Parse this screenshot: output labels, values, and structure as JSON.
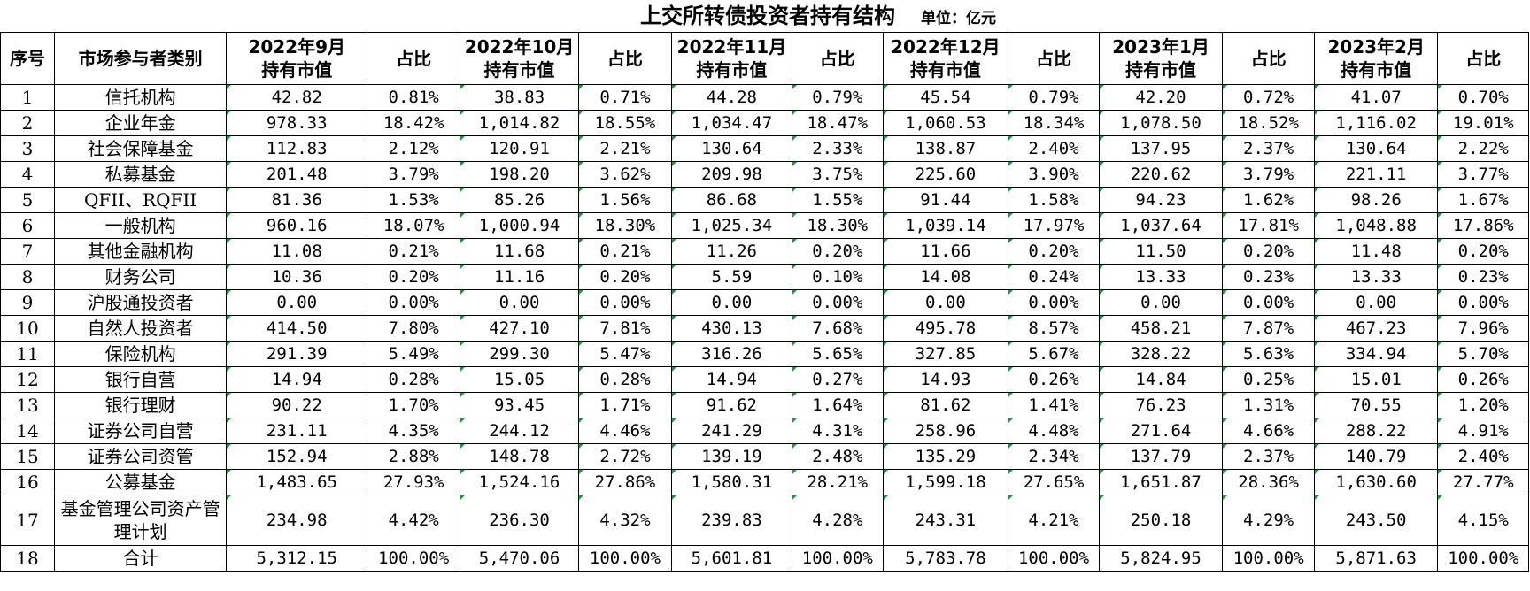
{
  "title": "上交所转债投资者持有结构",
  "unit": "单位：亿元",
  "headers": [
    "序号",
    "市场参与者类别",
    "2022年9月持有市值",
    "占比",
    "2022年10月持有市值",
    "占比",
    "2022年11月持有市值",
    "占比",
    "2022年12月持有市值",
    "占比",
    "2023年1月持有市值",
    "占比",
    "2023年2月持有市值",
    "占比"
  ],
  "rows": [
    [
      "1",
      "信托机构",
      "42.82",
      "0.81%",
      "38.83",
      "0.71%",
      "44.28",
      "0.79%",
      "45.54",
      "0.79%",
      "42.20",
      "0.72%",
      "41.07",
      "0.70%"
    ],
    [
      "2",
      "企业年金",
      "978.33",
      "18.42%",
      "1,014.82",
      "18.55%",
      "1,034.47",
      "18.47%",
      "1,060.53",
      "18.34%",
      "1,078.50",
      "18.52%",
      "1,116.02",
      "19.01%"
    ],
    [
      "3",
      "社会保障基金",
      "112.83",
      "2.12%",
      "120.91",
      "2.21%",
      "130.64",
      "2.33%",
      "138.87",
      "2.40%",
      "137.95",
      "2.37%",
      "130.64",
      "2.22%"
    ],
    [
      "4",
      "私募基金",
      "201.48",
      "3.79%",
      "198.20",
      "3.62%",
      "209.98",
      "3.75%",
      "225.60",
      "3.90%",
      "220.62",
      "3.79%",
      "221.11",
      "3.77%"
    ],
    [
      "5",
      "QFII、RQFII",
      "81.36",
      "1.53%",
      "85.26",
      "1.56%",
      "86.68",
      "1.55%",
      "91.44",
      "1.58%",
      "94.23",
      "1.62%",
      "98.26",
      "1.67%"
    ],
    [
      "6",
      "一般机构",
      "960.16",
      "18.07%",
      "1,000.94",
      "18.30%",
      "1,025.34",
      "18.30%",
      "1,039.14",
      "17.97%",
      "1,037.64",
      "17.81%",
      "1,048.88",
      "17.86%"
    ],
    [
      "7",
      "其他金融机构",
      "11.08",
      "0.21%",
      "11.68",
      "0.21%",
      "11.26",
      "0.20%",
      "11.66",
      "0.20%",
      "11.50",
      "0.20%",
      "11.48",
      "0.20%"
    ],
    [
      "8",
      "财务公司",
      "10.36",
      "0.20%",
      "11.16",
      "0.20%",
      "5.59",
      "0.10%",
      "14.08",
      "0.24%",
      "13.33",
      "0.23%",
      "13.33",
      "0.23%"
    ],
    [
      "9",
      "沪股通投资者",
      "0.00",
      "0.00%",
      "0.00",
      "0.00%",
      "0.00",
      "0.00%",
      "0.00",
      "0.00%",
      "0.00",
      "0.00%",
      "0.00",
      "0.00%"
    ],
    [
      "10",
      "自然人投资者",
      "414.50",
      "7.80%",
      "427.10",
      "7.81%",
      "430.13",
      "7.68%",
      "495.78",
      "8.57%",
      "458.21",
      "7.87%",
      "467.23",
      "7.96%"
    ],
    [
      "11",
      "保险机构",
      "291.39",
      "5.49%",
      "299.30",
      "5.47%",
      "316.26",
      "5.65%",
      "327.85",
      "5.67%",
      "328.22",
      "5.63%",
      "334.94",
      "5.70%"
    ],
    [
      "12",
      "银行自营",
      "14.94",
      "0.28%",
      "15.05",
      "0.28%",
      "14.94",
      "0.27%",
      "14.93",
      "0.26%",
      "14.84",
      "0.25%",
      "15.01",
      "0.26%"
    ],
    [
      "13",
      "银行理财",
      "90.22",
      "1.70%",
      "93.45",
      "1.71%",
      "91.62",
      "1.64%",
      "81.62",
      "1.41%",
      "76.23",
      "1.31%",
      "70.55",
      "1.20%"
    ],
    [
      "14",
      "证券公司自营",
      "231.11",
      "4.35%",
      "244.12",
      "4.46%",
      "241.29",
      "4.31%",
      "258.96",
      "4.48%",
      "271.64",
      "4.66%",
      "288.22",
      "4.91%"
    ],
    [
      "15",
      "证券公司资管",
      "152.94",
      "2.88%",
      "148.78",
      "2.72%",
      "139.19",
      "2.48%",
      "135.29",
      "2.34%",
      "137.79",
      "2.37%",
      "140.79",
      "2.40%"
    ],
    [
      "16",
      "公募基金",
      "1,483.65",
      "27.93%",
      "1,524.16",
      "27.86%",
      "1,580.31",
      "28.21%",
      "1,599.18",
      "27.65%",
      "1,651.87",
      "28.36%",
      "1,630.60",
      "27.77%"
    ],
    [
      "17",
      "基金管理公司资产管理计划",
      "234.98",
      "4.42%",
      "236.30",
      "4.32%",
      "239.83",
      "4.28%",
      "243.31",
      "4.21%",
      "250.18",
      "4.29%",
      "243.50",
      "4.15%"
    ],
    [
      "18",
      "合计",
      "5,312.15",
      "100.00%",
      "5,470.06",
      "100.00%",
      "5,601.81",
      "100.00%",
      "5,783.78",
      "100.00%",
      "5,824.95",
      "100.00%",
      "5,871.63",
      "100.00%"
    ]
  ]
}
